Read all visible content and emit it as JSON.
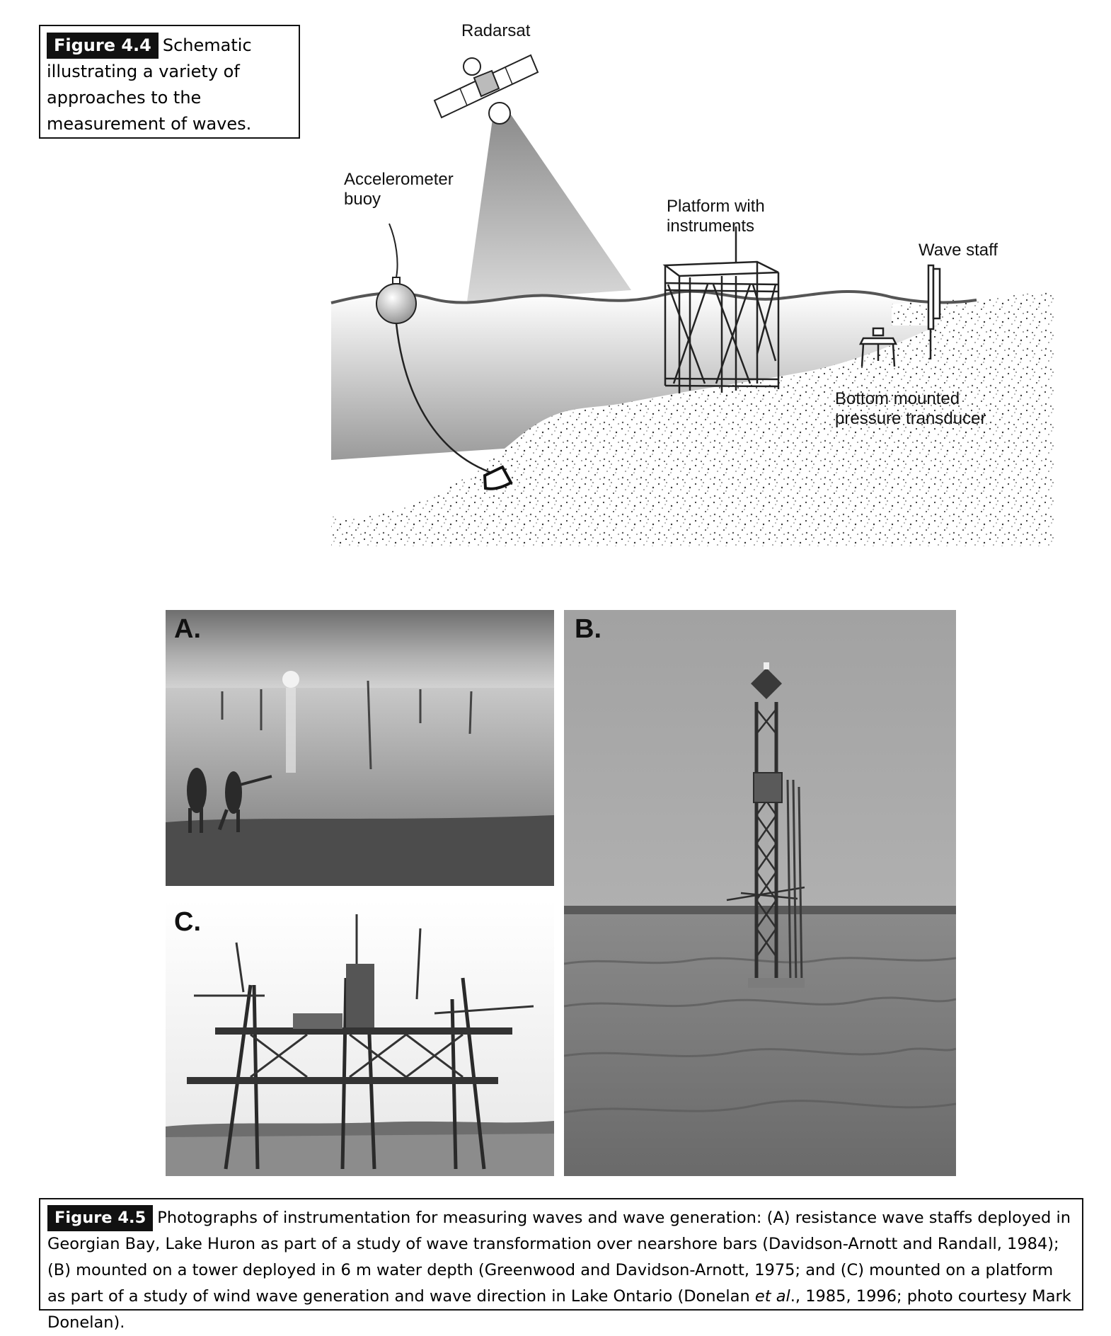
{
  "fig44": {
    "tag": "Figure 4.4",
    "caption": "Schematic illustrating a variety of approaches to the measurement of waves."
  },
  "schematic": {
    "radarsat": "Radarsat",
    "buoy": [
      "Accelerometer",
      "buoy"
    ],
    "platform": [
      "Platform with",
      "instruments"
    ],
    "staff": "Wave staff",
    "transducer": [
      "Bottom mounted",
      "pressure transducer"
    ]
  },
  "panels": {
    "a": "A.",
    "b": "B.",
    "c": "C."
  },
  "fig45": {
    "tag": "Figure 4.5",
    "caption_pre": "Photographs of instrumentation for measuring waves and wave generation: (A) resistance wave staffs deployed in Georgian Bay, Lake Huron as part of a study of wave transformation over nearshore bars (Davidson-Arnott and Randall, 1984); (B) mounted on a tower deployed in 6 m water depth (Greenwood and Davidson-Arnott, 1975; and (C) mounted on a platform as part of a study of wind wave generation and wave direction in Lake Ontario (Donelan ",
    "caption_em": "et al",
    "caption_post": "., 1985, 1996; photo courtesy Mark Donelan)."
  }
}
